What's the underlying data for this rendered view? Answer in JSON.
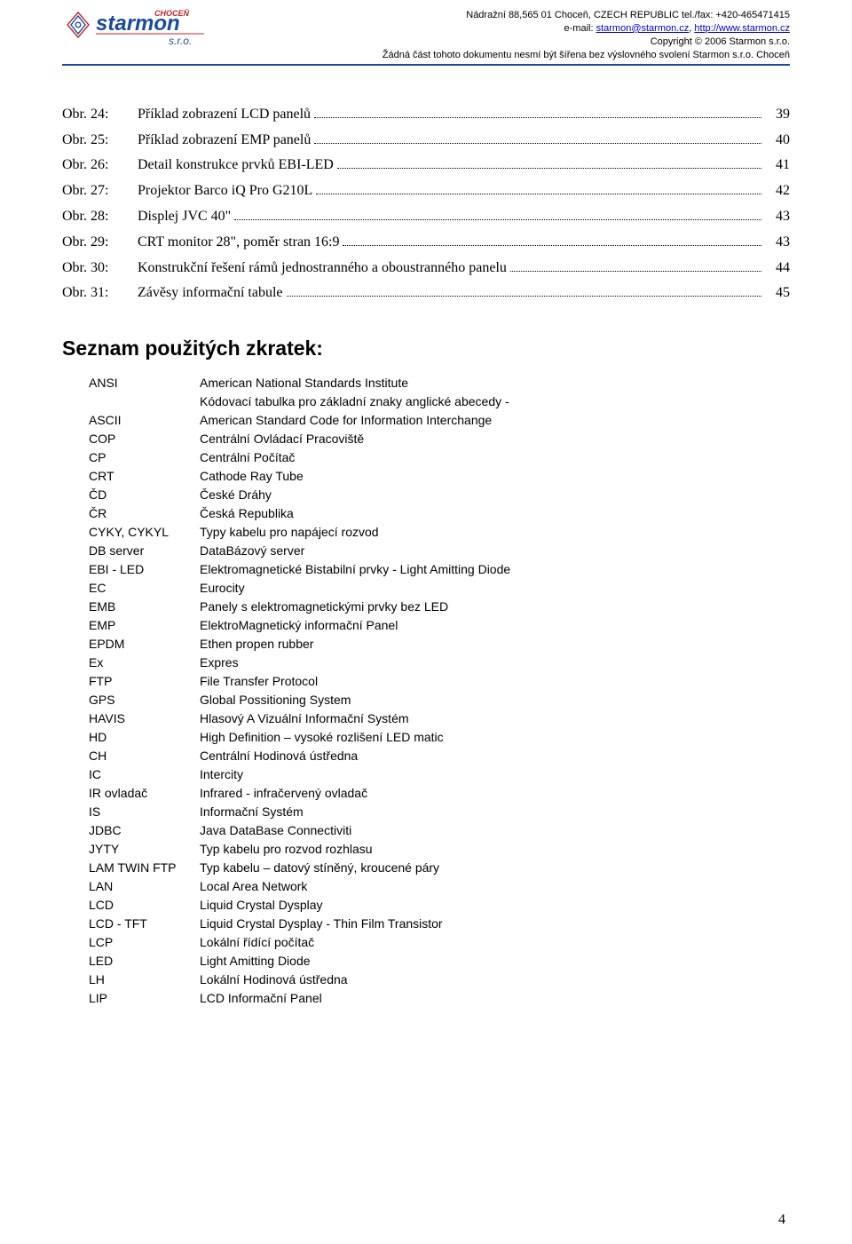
{
  "header": {
    "company": "starmon",
    "sro": "s.r.o.",
    "city": "CHOCEŇ",
    "addr_line1": "Nádražní 88,565 01 Choceň, CZECH REPUBLIC tel./fax: +420-465471415",
    "addr_line2_prefix": "e-mail: ",
    "addr_email": "starmon@starmon.cz",
    "addr_sep": ", ",
    "addr_url": "http://www.starmon.cz",
    "addr_line3": "Copyright © 2006 Starmon s.r.o.",
    "addr_line4": "Žádná část tohoto dokumentu nesmí být šířena bez výslovného svolení Starmon s.r.o. Choceň"
  },
  "figures": [
    {
      "label": "Obr. 24:",
      "title": "Příklad zobrazení LCD panelů",
      "page": "39"
    },
    {
      "label": "Obr. 25:",
      "title": "Příklad zobrazení EMP panelů",
      "page": "40"
    },
    {
      "label": "Obr. 26:",
      "title": "Detail konstrukce prvků EBI-LED",
      "page": "41"
    },
    {
      "label": "Obr. 27:",
      "title": "Projektor Barco iQ Pro G210L",
      "page": "42"
    },
    {
      "label": "Obr. 28:",
      "title": "Displej JVC 40\"",
      "page": "43"
    },
    {
      "label": "Obr. 29:",
      "title": "CRT monitor 28\", poměr stran 16:9",
      "page": "43"
    },
    {
      "label": "Obr. 30:",
      "title": "Konstrukční řešení rámů jednostranného a oboustranného panelu",
      "page": "44"
    },
    {
      "label": "Obr. 31:",
      "title": "Závěsy informační tabule",
      "page": "45"
    }
  ],
  "section_title": "Seznam použitých zkratek:",
  "abbr": [
    {
      "k": "ANSI",
      "v": "American National Standards Institute"
    },
    {
      "k": "",
      "v": "Kódovací tabulka pro základní znaky anglické abecedy -"
    },
    {
      "k": "ASCII",
      "v": "American Standard Code for Information Interchange"
    },
    {
      "k": "COP",
      "v": "Centrální Ovládací Pracoviště"
    },
    {
      "k": "CP",
      "v": "Centrální Počítač"
    },
    {
      "k": "CRT",
      "v": "Cathode Ray Tube"
    },
    {
      "k": "ČD",
      "v": "České Dráhy"
    },
    {
      "k": "ČR",
      "v": "Česká Republika"
    },
    {
      "k": "CYKY, CYKYL",
      "v": "Typy kabelu pro napájecí rozvod"
    },
    {
      "k": "DB server",
      "v": "DataBázový server"
    },
    {
      "k": "EBI - LED",
      "v": "Elektromagnetické Bistabilní prvky - Light Amitting Diode"
    },
    {
      "k": "EC",
      "v": "Eurocity"
    },
    {
      "k": "EMB",
      "v": "Panely s elektromagnetickými prvky bez LED"
    },
    {
      "k": "EMP",
      "v": "ElektroMagnetický informační Panel"
    },
    {
      "k": "EPDM",
      "v": "Ethen propen rubber"
    },
    {
      "k": "Ex",
      "v": "Expres"
    },
    {
      "k": "FTP",
      "v": "File Transfer Protocol"
    },
    {
      "k": "GPS",
      "v": "Global Possitioning System"
    },
    {
      "k": "HAVIS",
      "v": "Hlasový A Vizuální Informační Systém"
    },
    {
      "k": "HD",
      "v": "High Definition – vysoké rozlišení LED matic"
    },
    {
      "k": "CH",
      "v": "Centrální Hodinová ústředna"
    },
    {
      "k": "IC",
      "v": "Intercity"
    },
    {
      "k": "IR ovladač",
      "v": "Infrared - infračervený ovladač"
    },
    {
      "k": "IS",
      "v": "Informační Systém"
    },
    {
      "k": "JDBC",
      "v": "Java DataBase Connectiviti"
    },
    {
      "k": "JYTY",
      "v": "Typ kabelu pro rozvod rozhlasu"
    },
    {
      "k": "LAM TWIN FTP",
      "v": "Typ kabelu – datový stíněný, kroucené páry"
    },
    {
      "k": "LAN",
      "v": "Local Area Network"
    },
    {
      "k": "LCD",
      "v": "Liquid Crystal Dysplay"
    },
    {
      "k": "LCD - TFT",
      "v": "Liquid Crystal Dysplay - Thin Film Transistor"
    },
    {
      "k": "LCP",
      "v": "Lokální řídící počítač"
    },
    {
      "k": "LED",
      "v": "Light Amitting Diode"
    },
    {
      "k": "LH",
      "v": "Lokální Hodinová ústředna"
    },
    {
      "k": "LIP",
      "v": "LCD Informační Panel"
    }
  ],
  "page_number": "4",
  "colors": {
    "header_rule": "#1a4aa0",
    "logo_red": "#c1272d",
    "logo_blue": "#1a4aa0",
    "link": "#0000cc"
  }
}
